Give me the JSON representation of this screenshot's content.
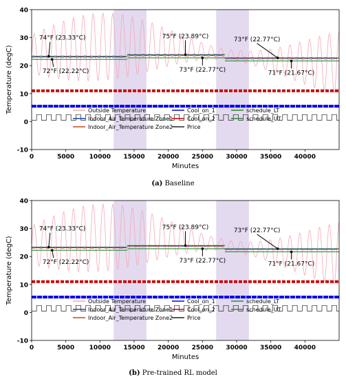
{
  "colors": {
    "outside": "#f4a8b4",
    "zone1": "#1f3fb4",
    "zone2": "#c24a1a",
    "cool1": "#0000ee",
    "cool2": "#cc0000",
    "price": "#222222",
    "lt": "#2a8a2a",
    "ut": "#2a8a2a",
    "shade": "#d9cdea"
  },
  "chart_data": [
    {
      "type": "line",
      "caption_tag": "(a)",
      "caption_text": "Baseline",
      "ylabel": "Temperature (degC)",
      "xlabel": "Minutes",
      "xlim": [
        0,
        45000
      ],
      "ylim": [
        -10,
        40
      ],
      "xticks": [
        0,
        5000,
        10000,
        15000,
        20000,
        25000,
        30000,
        35000,
        40000
      ],
      "yticks": [
        -10,
        0,
        10,
        20,
        30,
        40
      ],
      "shaded_ranges": [
        [
          12000,
          16800
        ],
        [
          27000,
          31800
        ]
      ],
      "setpoint_segments": [
        {
          "x": [
            0,
            14000
          ],
          "lower": 22.22,
          "upper": 23.33
        },
        {
          "x": [
            14000,
            28300
          ],
          "lower": 22.77,
          "upper": 23.89
        },
        {
          "x": [
            28300,
            45000
          ],
          "lower": 21.67,
          "upper": 22.77
        }
      ],
      "indoor_offset": 0.25,
      "cool_on_1_level": 5.5,
      "cool_on_2_level": 11,
      "price_range": [
        0.5,
        2.5
      ],
      "annotations": [
        {
          "text": "74°F (23.33°C)",
          "x": 2500,
          "y": 23.33
        },
        {
          "text": "72°F (22.22°C)",
          "x": 3000,
          "y": 22.22
        },
        {
          "text": "75°F (23.89°C)",
          "x": 22500,
          "y": 23.89
        },
        {
          "text": "73°F (22.77°C)",
          "x": 25000,
          "y": 22.77
        },
        {
          "text": "73°F (22.77°C)",
          "x": 36000,
          "y": 22.77
        },
        {
          "text": "71°F (21.67°C)",
          "x": 38000,
          "y": 21.67
        }
      ],
      "legend": {
        "col1": [
          "Outside Temperature",
          "Indoor_Air_Temperature Zone1",
          "Indoor_Air_Temperature Zone2"
        ],
        "col2": [
          "Cool_on_1",
          "Cool_on_2",
          "Price"
        ],
        "col3": [
          "schedule_LT",
          "schedule_UT"
        ]
      }
    },
    {
      "type": "line",
      "caption_tag": "(b)",
      "caption_text": "Pre-trained RL model",
      "ylabel": "Temperature (degC)",
      "xlabel": "Minutes",
      "xlim": [
        0,
        45000
      ],
      "ylim": [
        -10,
        40
      ],
      "xticks": [
        0,
        5000,
        10000,
        15000,
        20000,
        25000,
        30000,
        35000,
        40000
      ],
      "yticks": [
        -10,
        0,
        10,
        20,
        30,
        40
      ],
      "shaded_ranges": [
        [
          12000,
          16800
        ],
        [
          27000,
          31800
        ]
      ],
      "setpoint_segments": [
        {
          "x": [
            0,
            14000
          ],
          "lower": 22.22,
          "upper": 23.33
        },
        {
          "x": [
            14000,
            28300
          ],
          "lower": 22.77,
          "upper": 23.89
        },
        {
          "x": [
            28300,
            45000
          ],
          "lower": 21.67,
          "upper": 22.77
        }
      ],
      "indoor_offset": 0.15,
      "cool_on_1_level": 5.5,
      "cool_on_2_level": 11,
      "price_range": [
        0.5,
        2.5
      ],
      "annotations": [
        {
          "text": "74°F (23.33°C)",
          "x": 2500,
          "y": 23.33
        },
        {
          "text": "72°F (22.22°C)",
          "x": 3000,
          "y": 22.22
        },
        {
          "text": "75°F (23.89°C)",
          "x": 22500,
          "y": 23.89
        },
        {
          "text": "73°F (22.77°C)",
          "x": 25000,
          "y": 22.77
        },
        {
          "text": "73°F (22.77°C)",
          "x": 36000,
          "y": 22.77
        },
        {
          "text": "71°F (21.67°C)",
          "x": 38000,
          "y": 21.67
        }
      ],
      "legend": {
        "col1": [
          "Outside Temperature",
          "Indoor_Air_Temperature Zone1",
          "Indoor_Air_Temperature Zone2"
        ],
        "col2": [
          "Cool_on_1",
          "Cool_on_2",
          "Price"
        ],
        "col3": [
          "schedule_LT",
          "schedule_UT"
        ]
      }
    }
  ]
}
